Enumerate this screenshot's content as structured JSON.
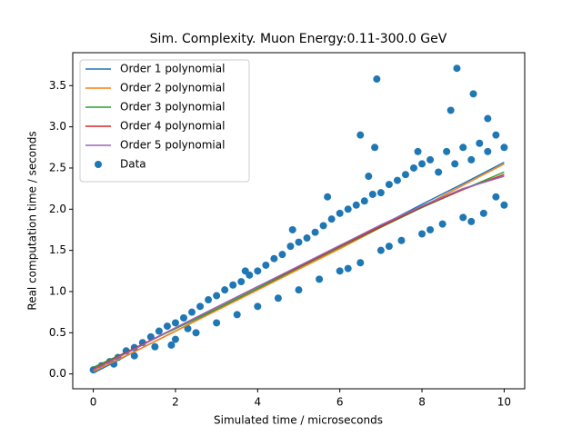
{
  "chart_data": {
    "type": "line_scatter",
    "title": "Sim. Complexity. Muon Energy:0.11-300.0 GeV",
    "x_label": "Simulated time / microseconds",
    "y_label": "Real computation time / seconds",
    "xlim": [
      -0.5,
      10.5
    ],
    "ylim": [
      -0.18,
      3.9
    ],
    "xticks": [
      0,
      2,
      4,
      6,
      8,
      10
    ],
    "yticks": [
      {
        "value": 0,
        "label": "0.0"
      },
      {
        "value": 0.5,
        "label": "0.5"
      },
      {
        "value": 1,
        "label": "1.0"
      },
      {
        "value": 1.5,
        "label": "1.5"
      },
      {
        "value": 2,
        "label": "2.0"
      },
      {
        "value": 2.5,
        "label": "2.5"
      },
      {
        "value": 3,
        "label": "3.0"
      },
      {
        "value": 3.5,
        "label": "3.5"
      }
    ],
    "legend": "upper left",
    "series": [
      {
        "name": "Order 1 polynomial",
        "color": "#1f77b4",
        "kind": "line",
        "x": [
          0,
          1,
          2,
          3,
          4,
          5,
          6,
          7,
          8,
          9,
          10
        ],
        "values": [
          0.01,
          0.27,
          0.52,
          0.78,
          1.03,
          1.29,
          1.54,
          1.8,
          2.06,
          2.31,
          2.57
        ]
      },
      {
        "name": "Order 2 polynomial",
        "color": "#ff7f0e",
        "kind": "line",
        "x": [
          0,
          1,
          2,
          3,
          4,
          5,
          6,
          7,
          8,
          9,
          10
        ],
        "values": [
          0.03,
          0.27,
          0.52,
          0.77,
          1.02,
          1.27,
          1.52,
          1.78,
          2.03,
          2.29,
          2.55
        ]
      },
      {
        "name": "Order 3 polynomial",
        "color": "#2ca02c",
        "kind": "line",
        "x": [
          0,
          1,
          2,
          3,
          4,
          5,
          6,
          7,
          8,
          9,
          10
        ],
        "values": [
          0.08,
          0.31,
          0.55,
          0.79,
          1.04,
          1.29,
          1.54,
          1.78,
          2.02,
          2.24,
          2.45
        ]
      },
      {
        "name": "Order 4 polynomial",
        "color": "#d62728",
        "kind": "line",
        "x": [
          0,
          1,
          2,
          3,
          4,
          5,
          6,
          7,
          8,
          9,
          10
        ],
        "values": [
          0.06,
          0.31,
          0.56,
          0.81,
          1.06,
          1.3,
          1.55,
          1.79,
          2.03,
          2.24,
          2.42
        ]
      },
      {
        "name": "Order 5 polynomial",
        "color": "#9467bd",
        "kind": "line",
        "x": [
          0,
          1,
          2,
          3,
          4,
          5,
          6,
          7,
          8,
          9,
          10
        ],
        "values": [
          0.05,
          0.3,
          0.56,
          0.81,
          1.06,
          1.31,
          1.56,
          1.81,
          2.04,
          2.25,
          2.4
        ]
      },
      {
        "name": "Data",
        "color": "#1f77b4",
        "kind": "scatter",
        "x": [
          0,
          0.2,
          0.4,
          0.6,
          0.8,
          1.0,
          1.2,
          1.4,
          1.6,
          1.8,
          2.0,
          2.2,
          2.4,
          2.6,
          2.8,
          3.0,
          3.2,
          3.4,
          3.6,
          3.8,
          4.0,
          4.2,
          4.4,
          4.6,
          4.8,
          5.0,
          5.2,
          5.4,
          5.6,
          5.8,
          6.0,
          6.2,
          6.4,
          6.6,
          6.8,
          7.0,
          7.2,
          7.4,
          7.6,
          7.8,
          8.0,
          8.2,
          8.4,
          8.6,
          8.8,
          9.0,
          9.2,
          9.4,
          9.6,
          9.8,
          10,
          0.5,
          1.0,
          1.5,
          2.0,
          2.5,
          3.0,
          3.5,
          4.0,
          4.5,
          5.0,
          5.5,
          6.0,
          6.5,
          7.0,
          7.5,
          8.0,
          8.5,
          9.0,
          9.5,
          10,
          9.8,
          9.2,
          8.2,
          7.2,
          6.2,
          8.85,
          6.9,
          9.25,
          6.85,
          6.5,
          8.7,
          9.6,
          7.9,
          6.7,
          5.7,
          4.85,
          3.7,
          1.9,
          2.3
        ],
        "values": [
          0.05,
          0.1,
          0.15,
          0.2,
          0.28,
          0.32,
          0.38,
          0.45,
          0.52,
          0.58,
          0.62,
          0.68,
          0.75,
          0.82,
          0.9,
          0.95,
          1.02,
          1.08,
          1.12,
          1.2,
          1.25,
          1.32,
          1.4,
          1.45,
          1.55,
          1.6,
          1.65,
          1.72,
          1.8,
          1.88,
          1.95,
          2.0,
          2.05,
          2.1,
          2.18,
          2.2,
          2.3,
          2.35,
          2.42,
          2.5,
          2.55,
          2.6,
          2.45,
          2.7,
          2.55,
          2.75,
          2.6,
          2.8,
          2.7,
          2.9,
          2.75,
          0.12,
          0.22,
          0.33,
          0.42,
          0.5,
          0.62,
          0.72,
          0.82,
          0.92,
          1.02,
          1.15,
          1.25,
          1.35,
          1.5,
          1.62,
          1.7,
          1.82,
          1.9,
          1.95,
          2.05,
          2.15,
          1.85,
          1.75,
          1.55,
          1.28,
          3.71,
          3.58,
          3.4,
          2.75,
          2.9,
          3.2,
          3.1,
          2.7,
          2.4,
          2.15,
          1.75,
          1.25,
          0.35,
          0.55
        ]
      }
    ]
  }
}
